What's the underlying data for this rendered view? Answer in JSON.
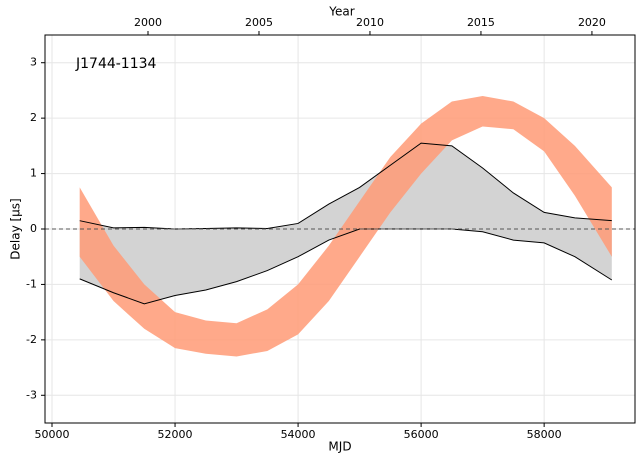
{
  "chart_data": {
    "type": "band",
    "annotation": "J1744-1134",
    "xlabel": "MJD",
    "ylabel": "Delay [μs]",
    "x2label": "Year",
    "x": [
      50450,
      51000,
      51500,
      52000,
      52500,
      53000,
      53500,
      54000,
      54500,
      55000,
      55500,
      56000,
      56500,
      57000,
      57500,
      58000,
      58500,
      59100
    ],
    "series": [
      {
        "color": "#d3d3d3",
        "edgecolor": "#000000",
        "upper": [
          0.15,
          0.02,
          0.03,
          0,
          0.01,
          0.02,
          0.01,
          0.1,
          0.45,
          0.75,
          1.15,
          1.55,
          1.5,
          1.1,
          0.65,
          0.3,
          0.2,
          0.15
        ],
        "lower": [
          -0.9,
          -1.15,
          -1.35,
          -1.2,
          -1.1,
          -0.95,
          -0.75,
          -0.5,
          -0.2,
          0,
          0,
          0,
          0,
          -0.05,
          -0.2,
          -0.25,
          -0.5,
          -0.92
        ]
      },
      {
        "color": "#ff9a76",
        "upper": [
          0.75,
          -0.3,
          -1.0,
          -1.5,
          -1.65,
          -1.7,
          -1.45,
          -1.0,
          -0.3,
          0.5,
          1.3,
          1.9,
          2.3,
          2.4,
          2.3,
          2.0,
          1.5,
          0.75
        ],
        "lower": [
          -0.5,
          -1.3,
          -1.8,
          -2.15,
          -2.25,
          -2.3,
          -2.2,
          -1.9,
          -1.3,
          -0.5,
          0.3,
          1.0,
          1.6,
          1.85,
          1.8,
          1.4,
          0.6,
          -0.5
        ]
      }
    ],
    "reference_line": 0,
    "xlim": [
      49886,
      59477
    ],
    "xticks": [
      50000,
      52000,
      54000,
      56000,
      58000
    ],
    "x2lim": [
      1995.36,
      2021.94
    ],
    "x2ticks": [
      2000,
      2005,
      2010,
      2015,
      2020
    ],
    "ylim": [
      -3.5,
      3.5
    ],
    "yticks": [
      -3,
      -2,
      -1,
      0,
      1,
      2,
      3
    ],
    "grid": true
  }
}
